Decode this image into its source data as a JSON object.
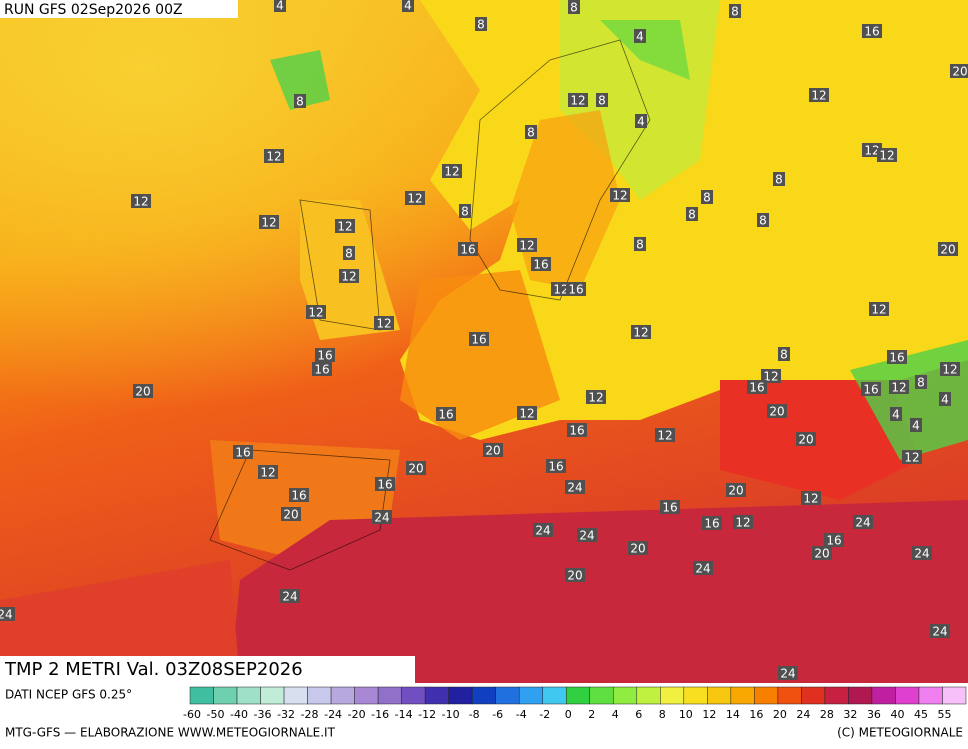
{
  "header": {
    "run": "RUN GFS 02Sep2026 00Z"
  },
  "footer": {
    "title": "TMP 2 METRI Val. 03Z08SEP2026",
    "source": "DATI NCEP GFS 0.25°",
    "credit": "MTG-GFS — ELABORAZIONE WWW.METEOGIORNALE.IT",
    "copyright": "(C) METEOGIORNALE"
  },
  "legend": {
    "ticks": [
      -60,
      -50,
      -40,
      -36,
      -32,
      -28,
      -24,
      -20,
      -16,
      -14,
      -12,
      -10,
      -8,
      -6,
      -4,
      -2,
      0,
      2,
      4,
      6,
      8,
      10,
      12,
      14,
      16,
      20,
      24,
      28,
      32,
      36,
      40,
      45,
      55
    ],
    "colors": [
      "#3fbf9f",
      "#6fd0b0",
      "#9fe0c8",
      "#c0ecd8",
      "#d8e0f0",
      "#c8c8ec",
      "#b8a8e0",
      "#a888d4",
      "#9070c8",
      "#7050c0",
      "#4030b0",
      "#2020a0",
      "#1040c0",
      "#2070e0",
      "#30a0f0",
      "#40c8f0",
      "#30d040",
      "#60e040",
      "#90ec40",
      "#c0f040",
      "#f0f040",
      "#f8e020",
      "#f8c810",
      "#f8a800",
      "#f88000",
      "#f05010",
      "#e03020",
      "#c82040",
      "#b01850",
      "#c020a0",
      "#e040d0",
      "#f080f0",
      "#f8c0f8"
    ]
  },
  "map": {
    "labels": [
      4,
      4,
      8,
      8,
      8,
      4,
      16,
      20,
      8,
      12,
      8,
      12,
      4,
      8,
      12,
      12,
      12,
      12,
      8,
      12,
      12,
      12,
      8,
      8,
      8,
      12,
      12,
      8,
      16,
      12,
      8,
      20,
      8,
      16,
      12,
      12,
      16,
      12,
      12,
      12,
      16,
      12,
      8,
      16,
      16,
      16,
      12,
      12,
      16,
      8,
      16,
      12,
      20,
      4,
      12,
      16,
      12,
      20,
      4,
      4,
      16,
      12,
      20,
      16,
      20,
      12,
      12,
      20,
      16,
      16,
      24,
      20,
      16,
      12,
      16,
      20,
      24,
      16,
      12,
      24,
      24,
      24,
      16,
      20,
      20,
      24,
      24,
      20,
      24,
      24,
      24,
      24
    ]
  }
}
